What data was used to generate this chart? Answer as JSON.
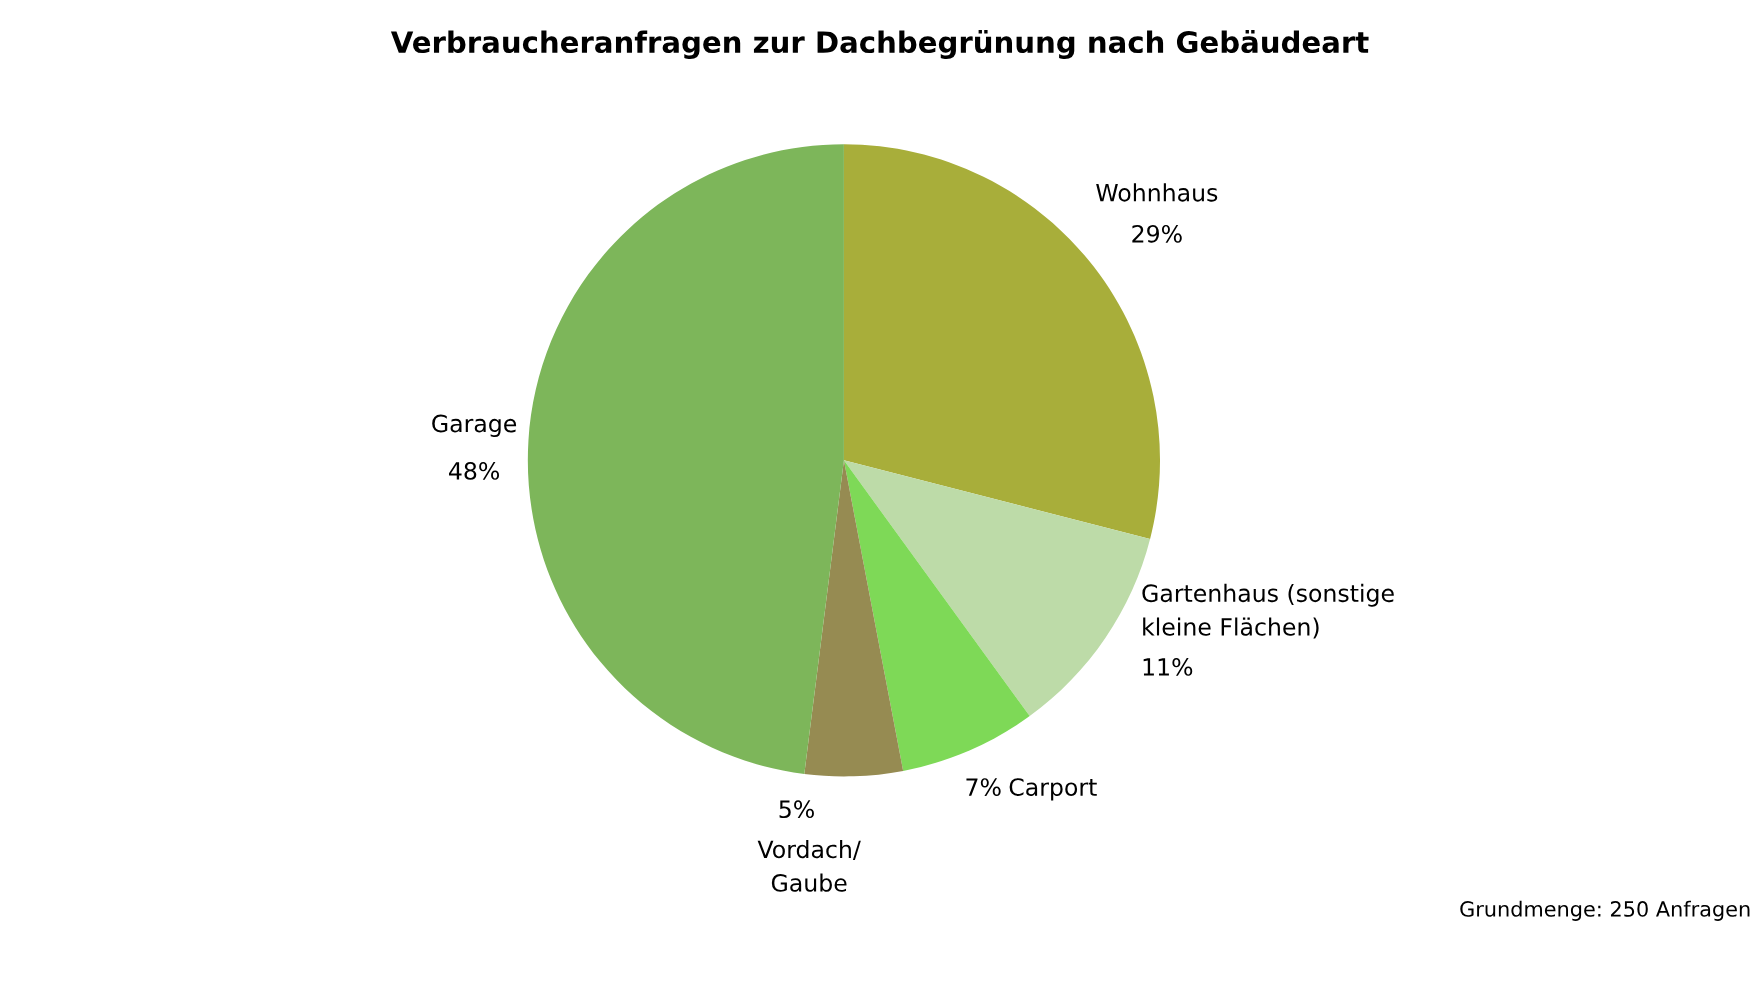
{
  "chart_data": {
    "type": "pie",
    "title": "Verbraucheranfragen zur Dachbegrünung nach Gebäudeart",
    "categories": [
      "Wohnhaus",
      "Gartenhaus (sonstige\nkleine Flächen)",
      "Carport",
      "Vordach/\nGaube",
      "Garage"
    ],
    "values": [
      29,
      11,
      7,
      5,
      48
    ],
    "value_labels": [
      "29%",
      "11%",
      "7%",
      "5%",
      "48%"
    ],
    "colors": [
      "#a8ae3a",
      "#bddba8",
      "#7ed957",
      "#968b52",
      "#7db65a"
    ],
    "annotations": [
      "Grundmenge: 250 Anfragen"
    ]
  }
}
